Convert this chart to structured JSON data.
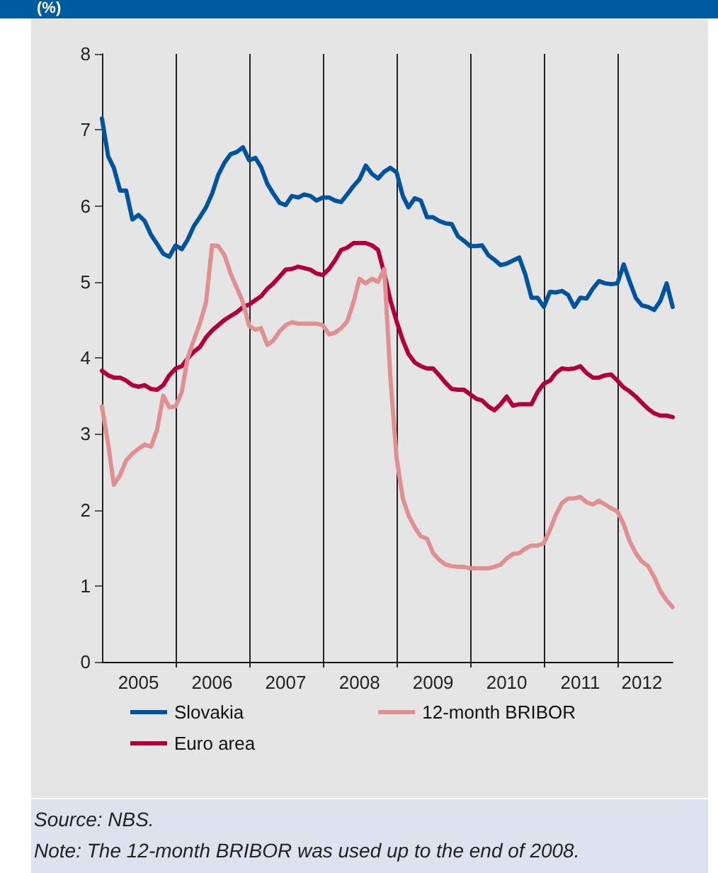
{
  "chart_data": {
    "type": "line",
    "ylabel": "(%)",
    "x": [
      "2005-01",
      "2005-02",
      "2005-03",
      "2005-04",
      "2005-05",
      "2005-06",
      "2005-07",
      "2005-08",
      "2005-09",
      "2005-10",
      "2005-11",
      "2005-12",
      "2006-01",
      "2006-02",
      "2006-03",
      "2006-04",
      "2006-05",
      "2006-06",
      "2006-07",
      "2006-08",
      "2006-09",
      "2006-10",
      "2006-11",
      "2006-12",
      "2007-01",
      "2007-02",
      "2007-03",
      "2007-04",
      "2007-05",
      "2007-06",
      "2007-07",
      "2007-08",
      "2007-09",
      "2007-10",
      "2007-11",
      "2007-12",
      "2008-01",
      "2008-02",
      "2008-03",
      "2008-04",
      "2008-05",
      "2008-06",
      "2008-07",
      "2008-08",
      "2008-09",
      "2008-10",
      "2008-11",
      "2008-12",
      "2009-01",
      "2009-02",
      "2009-03",
      "2009-04",
      "2009-05",
      "2009-06",
      "2009-07",
      "2009-08",
      "2009-09",
      "2009-10",
      "2009-11",
      "2009-12",
      "2010-01",
      "2010-02",
      "2010-03",
      "2010-04",
      "2010-05",
      "2010-06",
      "2010-07",
      "2010-08",
      "2010-09",
      "2010-10",
      "2010-11",
      "2010-12",
      "2011-01",
      "2011-02",
      "2011-03",
      "2011-04",
      "2011-05",
      "2011-06",
      "2011-07",
      "2011-08",
      "2011-09",
      "2011-10",
      "2011-11",
      "2011-12",
      "2012-01",
      "2012-02",
      "2012-03",
      "2012-04",
      "2012-05",
      "2012-06",
      "2012-07",
      "2012-08",
      "2012-09",
      "2012-10"
    ],
    "series": [
      {
        "name": "Slovakia",
        "color": "#00549f",
        "values": [
          7.15,
          6.65,
          6.5,
          6.2,
          6.2,
          5.82,
          5.88,
          5.8,
          5.62,
          5.5,
          5.37,
          5.33,
          5.48,
          5.43,
          5.55,
          5.73,
          5.85,
          5.98,
          6.16,
          6.41,
          6.57,
          6.68,
          6.71,
          6.77,
          6.6,
          6.63,
          6.51,
          6.29,
          6.16,
          6.04,
          6.01,
          6.13,
          6.11,
          6.15,
          6.13,
          6.07,
          6.11,
          6.11,
          6.07,
          6.05,
          6.15,
          6.26,
          6.35,
          6.53,
          6.42,
          6.36,
          6.45,
          6.5,
          6.44,
          6.13,
          5.98,
          6.1,
          6.07,
          5.85,
          5.85,
          5.8,
          5.77,
          5.76,
          5.6,
          5.54,
          5.47,
          5.47,
          5.48,
          5.35,
          5.29,
          5.22,
          5.24,
          5.28,
          5.32,
          5.1,
          4.79,
          4.79,
          4.67,
          4.87,
          4.86,
          4.88,
          4.83,
          4.67,
          4.79,
          4.78,
          4.91,
          5.01,
          4.98,
          4.97,
          4.98,
          5.23,
          5.01,
          4.79,
          4.69,
          4.67,
          4.63,
          4.75,
          4.98,
          4.67
        ]
      },
      {
        "name": "12-month BRIBOR",
        "color": "#e09090",
        "values": [
          3.36,
          2.86,
          2.33,
          2.46,
          2.65,
          2.74,
          2.8,
          2.86,
          2.83,
          3.05,
          3.5,
          3.35,
          3.36,
          3.55,
          3.99,
          4.23,
          4.45,
          4.73,
          5.48,
          5.47,
          5.35,
          5.11,
          4.92,
          4.73,
          4.42,
          4.37,
          4.39,
          4.17,
          4.23,
          4.35,
          4.43,
          4.47,
          4.45,
          4.45,
          4.45,
          4.45,
          4.43,
          4.31,
          4.33,
          4.39,
          4.48,
          4.73,
          5.04,
          4.98,
          5.04,
          5.0,
          5.17,
          3.75,
          2.68,
          2.15,
          1.93,
          1.77,
          1.65,
          1.62,
          1.43,
          1.34,
          1.28,
          1.26,
          1.25,
          1.25,
          1.23,
          1.23,
          1.23,
          1.23,
          1.25,
          1.28,
          1.36,
          1.42,
          1.43,
          1.49,
          1.53,
          1.53,
          1.56,
          1.74,
          1.93,
          2.09,
          2.15,
          2.15,
          2.17,
          2.1,
          2.07,
          2.12,
          2.07,
          2.02,
          1.98,
          1.81,
          1.59,
          1.43,
          1.32,
          1.26,
          1.12,
          0.93,
          0.81,
          0.72
        ]
      },
      {
        "name": "Euro area",
        "color": "#b0003c",
        "values": [
          3.83,
          3.77,
          3.74,
          3.74,
          3.7,
          3.64,
          3.62,
          3.64,
          3.59,
          3.58,
          3.64,
          3.77,
          3.86,
          3.89,
          3.99,
          4.08,
          4.14,
          4.27,
          4.36,
          4.43,
          4.5,
          4.55,
          4.6,
          4.67,
          4.7,
          4.76,
          4.81,
          4.91,
          4.98,
          5.07,
          5.16,
          5.17,
          5.2,
          5.18,
          5.16,
          5.11,
          5.09,
          5.17,
          5.28,
          5.42,
          5.45,
          5.51,
          5.51,
          5.51,
          5.48,
          5.42,
          5.11,
          4.76,
          4.48,
          4.23,
          4.05,
          3.94,
          3.89,
          3.86,
          3.86,
          3.77,
          3.67,
          3.59,
          3.58,
          3.58,
          3.52,
          3.46,
          3.44,
          3.36,
          3.31,
          3.39,
          3.49,
          3.37,
          3.39,
          3.39,
          3.39,
          3.55,
          3.66,
          3.7,
          3.8,
          3.86,
          3.85,
          3.86,
          3.89,
          3.8,
          3.74,
          3.74,
          3.77,
          3.78,
          3.7,
          3.61,
          3.56,
          3.49,
          3.41,
          3.33,
          3.27,
          3.24,
          3.24,
          3.22
        ]
      }
    ],
    "xlim": [
      "2005-01",
      "2012-10"
    ],
    "xticks": [
      {
        "value": "2005-07",
        "label": "2005"
      },
      {
        "value": "2006-01",
        "label": null
      },
      {
        "value": "2006-07",
        "label": "2006"
      },
      {
        "value": "2007-01",
        "label": null
      },
      {
        "value": "2007-07",
        "label": "2007"
      },
      {
        "value": "2008-01",
        "label": null
      },
      {
        "value": "2008-07",
        "label": "2008"
      },
      {
        "value": "2009-01",
        "label": null
      },
      {
        "value": "2009-07",
        "label": "2009"
      },
      {
        "value": "2010-01",
        "label": null
      },
      {
        "value": "2010-07",
        "label": "2010"
      },
      {
        "value": "2011-01",
        "label": null
      },
      {
        "value": "2011-07",
        "label": "2011"
      },
      {
        "value": "2012-01",
        "label": null
      },
      {
        "value": "2012-05",
        "label": "2012"
      }
    ],
    "ylim": [
      0,
      8
    ],
    "yticks": [
      0,
      1,
      2,
      3,
      4,
      5,
      6,
      7,
      8
    ],
    "grid": "x",
    "legend": "bottom",
    "marker": "none",
    "line_style": "solid",
    "annotations": [
      "Source: NBS.",
      "Note: The 12-month BRIBOR was used up to the end of 2008."
    ]
  }
}
